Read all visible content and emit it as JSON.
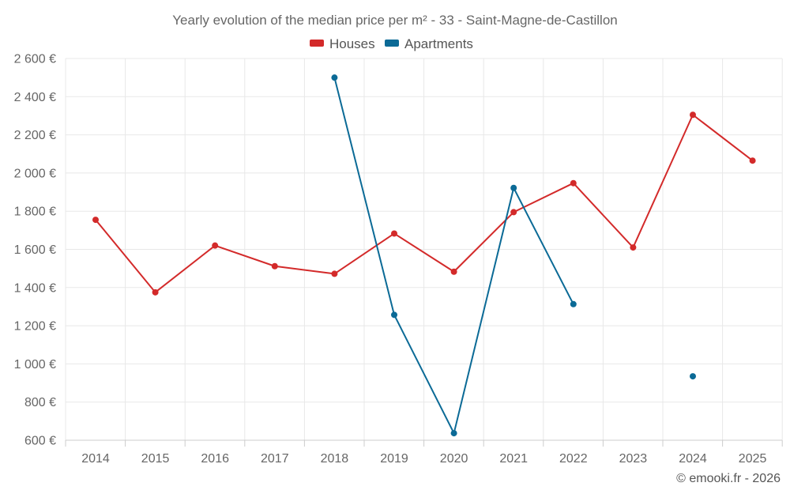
{
  "chart_data": {
    "type": "line",
    "title": "Yearly evolution of the median price per m² - 33 - Saint-Magne-de-Castillon",
    "categories": [
      "2014",
      "2015",
      "2016",
      "2017",
      "2018",
      "2019",
      "2020",
      "2021",
      "2022",
      "2023",
      "2024",
      "2025"
    ],
    "ylim": [
      600,
      2600
    ],
    "yticks": [
      600,
      800,
      1000,
      1200,
      1400,
      1600,
      1800,
      2000,
      2200,
      2400,
      2600
    ],
    "ytick_labels": [
      "600 €",
      "800 €",
      "1 000 €",
      "1 200 €",
      "1 400 €",
      "1 600 €",
      "1 800 €",
      "2 000 €",
      "2 200 €",
      "2 400 €",
      "2 600 €"
    ],
    "grid": true,
    "legend_position": "top-center",
    "series": [
      {
        "name": "Houses",
        "color": "#d32a2a",
        "values": [
          1755,
          1375,
          1620,
          1512,
          1472,
          1683,
          1483,
          1795,
          1947,
          1610,
          2305,
          2065
        ]
      },
      {
        "name": "Apartments",
        "color": "#0b6a96",
        "values": [
          null,
          null,
          null,
          null,
          2500,
          1257,
          637,
          1922,
          1313,
          null,
          935,
          null
        ]
      }
    ]
  },
  "credit": "© emooki.fr - 2026"
}
